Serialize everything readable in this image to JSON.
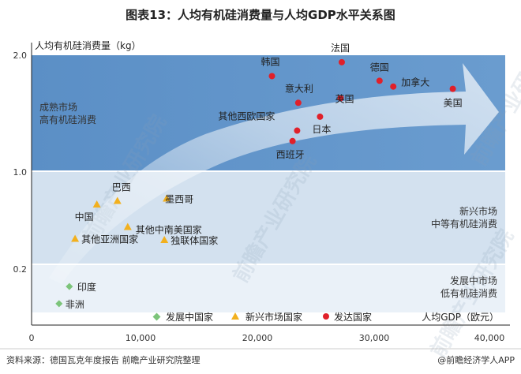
{
  "chart_data": {
    "type": "scatter",
    "title": "图表13：人均有机硅消费量与人均GDP水平关系图",
    "xlabel": "人均GDP（欧元）",
    "ylabel": "人均有机硅消费量（kg）",
    "xlim": [
      0,
      40000
    ],
    "x_ticks": [
      "0",
      "10,000",
      "20,000",
      "30,000",
      "40,000"
    ],
    "y_ticks": [
      "2.0",
      "1.0",
      "0.2"
    ],
    "grid": false,
    "legend_position": "bottom",
    "regions": [
      {
        "name": "developed",
        "label_lines": [
          "成熟市场",
          "高有机硅消费"
        ],
        "align": "left"
      },
      {
        "name": "emerging",
        "label_lines": [
          "新兴市场",
          "中等有机硅消费"
        ],
        "align": "right"
      },
      {
        "name": "developing",
        "label_lines": [
          "发展中市场",
          "低有机硅消费"
        ],
        "align": "right"
      }
    ],
    "series": [
      {
        "name": "发展中国家",
        "marker": "diamond",
        "color": "#7cc47a",
        "points": [
          {
            "label": "印度",
            "x": 3300,
            "y": 0.11
          },
          {
            "label": "非洲",
            "x": 2400,
            "y": 0.035
          }
        ]
      },
      {
        "name": "新兴市场国家",
        "marker": "triangle",
        "color": "#f2b01e",
        "points": [
          {
            "label": "巴西",
            "x": 7500,
            "y": 0.75
          },
          {
            "label": "中国",
            "x": 5700,
            "y": 0.72
          },
          {
            "label": "墨西哥",
            "x": 11800,
            "y": 0.77
          },
          {
            "label": "其他中南美国家",
            "x": 8400,
            "y": 0.53
          },
          {
            "label": "其他亚洲国家",
            "x": 3800,
            "y": 0.43
          },
          {
            "label": "独联体国家",
            "x": 11600,
            "y": 0.42
          }
        ]
      },
      {
        "name": "发达国家",
        "marker": "circle",
        "color": "#e0202a",
        "points": [
          {
            "label": "韩国",
            "x": 21000,
            "y": 1.82
          },
          {
            "label": "法国",
            "x": 27100,
            "y": 1.94
          },
          {
            "label": "德国",
            "x": 30400,
            "y": 1.78
          },
          {
            "label": "加拿大",
            "x": 31600,
            "y": 1.73
          },
          {
            "label": "美国",
            "x": 36800,
            "y": 1.71
          },
          {
            "label": "意大利",
            "x": 23300,
            "y": 1.59
          },
          {
            "label": "英国",
            "x": 27000,
            "y": 1.63
          },
          {
            "label": "其他西欧国家",
            "x": 23200,
            "y": 1.35
          },
          {
            "label": "日本",
            "x": 25200,
            "y": 1.47
          },
          {
            "label": "西班牙",
            "x": 22800,
            "y": 1.26
          }
        ]
      }
    ]
  },
  "footer": {
    "source": "资料来源：德国瓦克年度报告 前瞻产业研究院整理",
    "brand": "@前瞻经济学人APP"
  },
  "watermark": "前瞻产业研究院",
  "colors": {
    "developed_band": "#5e93c8",
    "emerging_band": "#d2e0ee",
    "developing_band": "#e9f0f7",
    "arrow": "#ffffff"
  }
}
